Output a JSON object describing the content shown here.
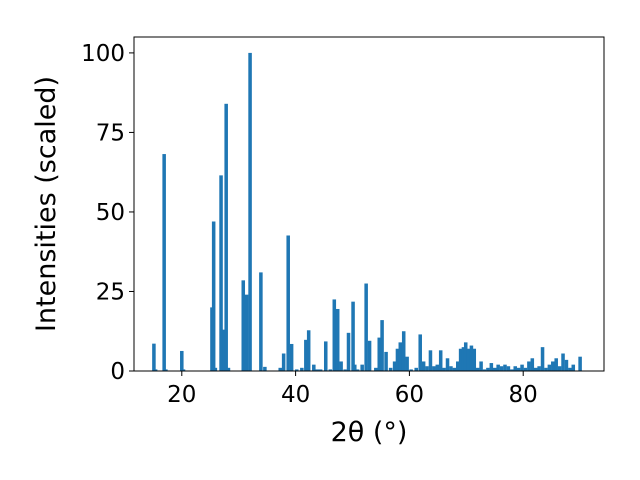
{
  "chart_data": {
    "type": "bar",
    "xlabel": "2θ (°)",
    "ylabel": "Intensities (scaled)",
    "xlim": [
      11.6,
      94.2
    ],
    "ylim": [
      0,
      105
    ],
    "xticks": [
      20,
      40,
      60,
      80
    ],
    "yticks": [
      0,
      25,
      50,
      75,
      100
    ],
    "grid": false,
    "legend": "none",
    "bar_color": "#1f77b4",
    "bar_width": 0.62,
    "x": [
      15.1,
      15.4,
      16.9,
      17.2,
      20.0,
      20.3,
      25.3,
      25.6,
      25.9,
      26.9,
      27.4,
      27.8,
      28.2,
      30.8,
      31.4,
      32.0,
      33.9,
      34.6,
      37.3,
      37.9,
      38.7,
      39.3,
      40.2,
      41.1,
      41.8,
      42.3,
      43.2,
      43.8,
      44.4,
      45.3,
      46.1,
      46.8,
      47.4,
      48.0,
      48.7,
      49.3,
      50.1,
      50.4,
      50.9,
      51.7,
      52.4,
      53.0,
      54.1,
      54.7,
      55.2,
      55.9,
      56.7,
      57.4,
      57.9,
      58.4,
      59.0,
      59.6,
      60.3,
      61.2,
      61.9,
      62.5,
      63.1,
      63.7,
      64.3,
      64.9,
      65.5,
      66.1,
      66.7,
      67.3,
      67.9,
      68.5,
      69.0,
      69.5,
      69.9,
      70.4,
      70.9,
      71.4,
      72.0,
      72.6,
      73.2,
      73.8,
      74.4,
      75.0,
      75.6,
      76.2,
      76.8,
      77.4,
      78.0,
      78.6,
      79.2,
      79.8,
      80.4,
      81.0,
      81.6,
      82.2,
      82.8,
      83.4,
      84.0,
      84.6,
      85.2,
      85.8,
      86.4,
      87.0,
      87.6,
      88.2,
      88.8,
      90.0
    ],
    "values": [
      8.6,
      0.5,
      68.2,
      0.5,
      6.3,
      0.5,
      20.0,
      47.0,
      1.0,
      61.5,
      13.0,
      84.0,
      1.0,
      28.5,
      24.0,
      100.0,
      31.0,
      1.3,
      1.0,
      5.5,
      42.6,
      8.5,
      0.5,
      1.0,
      9.8,
      12.8,
      2.0,
      0.5,
      0.5,
      9.3,
      0.5,
      22.5,
      19.5,
      3.0,
      0.5,
      12.0,
      21.8,
      2.0,
      0.5,
      2.0,
      27.5,
      9.5,
      1.0,
      10.5,
      16.0,
      6.0,
      1.0,
      3.0,
      7.0,
      9.0,
      12.5,
      4.5,
      0.5,
      1.0,
      11.5,
      3.0,
      1.5,
      6.5,
      1.5,
      2.0,
      6.5,
      1.0,
      4.0,
      1.5,
      1.0,
      3.0,
      7.0,
      7.5,
      9.0,
      7.0,
      8.0,
      7.0,
      1.0,
      3.0,
      0.5,
      1.0,
      2.5,
      1.0,
      2.0,
      1.5,
      2.0,
      1.5,
      0.5,
      1.5,
      1.0,
      2.0,
      1.0,
      3.0,
      4.0,
      1.0,
      1.5,
      7.5,
      1.0,
      2.0,
      3.0,
      4.0,
      1.5,
      5.5,
      3.5,
      1.0,
      2.0,
      4.5
    ]
  }
}
